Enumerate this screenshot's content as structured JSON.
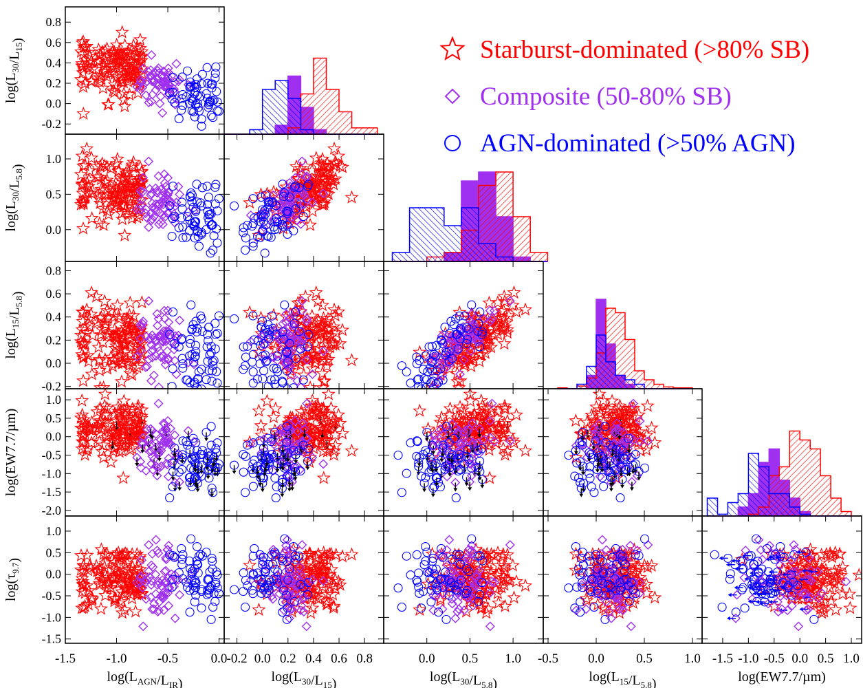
{
  "legend": {
    "starburst": {
      "label": "Starburst-dominated (>80% SB)",
      "color": "#ff0000",
      "icon": "star-icon"
    },
    "composite": {
      "label": "Composite (50-80% SB)",
      "color": "#a030ef",
      "icon": "diamond-icon"
    },
    "agn": {
      "label": "AGN-dominated (>50% AGN)",
      "color": "#0000ff",
      "icon": "circle-icon"
    }
  },
  "upper_limit_color": "#000000",
  "chart_data": {
    "type": "scatter",
    "layout": "corner-plot",
    "variables": [
      {
        "key": "agn",
        "label": "log(L_AGN/L_IR)",
        "range": [
          -1.5,
          0.05
        ],
        "ticks": [
          -1.5,
          -1.0,
          -0.5,
          0.0
        ],
        "ticklabels": [
          "-1.5",
          "-1.0",
          "-0.5",
          "0.0"
        ]
      },
      {
        "key": "l30_15",
        "label": "log(L_30/L_15)",
        "range": [
          -0.3,
          0.95
        ],
        "ticks": [
          -0.2,
          0.0,
          0.2,
          0.4,
          0.6,
          0.8
        ],
        "ticklabels": [
          "-0.2",
          "0.0",
          "0.2",
          "0.4",
          "0.6",
          "0.8"
        ]
      },
      {
        "key": "l30_58",
        "label": "log(L_30/L_5.8)",
        "range": [
          -0.45,
          1.35
        ],
        "ticks": [
          0.0,
          0.5,
          1.0
        ],
        "ticklabels": [
          "0.0",
          "0.5",
          "1.0"
        ]
      },
      {
        "key": "l15_58",
        "label": "log(L_15/L_5.8)",
        "range": [
          -0.22,
          0.88
        ],
        "ticks": [
          -0.2,
          0.0,
          0.2,
          0.4,
          0.6,
          0.8
        ],
        "ticklabels": [
          "-0.2",
          "0.0",
          "0.2",
          "0.4",
          "0.6",
          "0.8"
        ]
      },
      {
        "key": "ew",
        "label": "log(EW7.7/µm)",
        "range": [
          -2.15,
          1.3
        ],
        "ticks": [
          -2.0,
          -1.5,
          -1.0,
          -0.5,
          0.0,
          0.5,
          1.0
        ],
        "ticklabels": [
          "-2.0",
          "-1.5",
          "-1.0",
          "-0.5",
          "0.0",
          "0.5",
          "1.0"
        ]
      },
      {
        "key": "tau",
        "label": "log(τ_9.7)",
        "range": [
          -1.6,
          1.35
        ],
        "ticks": [
          -1.5,
          -1.0,
          -0.5,
          0.0,
          0.5,
          1.0
        ],
        "ticklabels": [
          "-1.5",
          "-1.0",
          "-0.5",
          "0.0",
          "0.5",
          "1.0"
        ]
      }
    ],
    "x_tick_labels": {
      "agn": [
        "-1.5",
        "-1.0",
        "-0.5",
        "0.0"
      ],
      "l30_15": [
        "-0.2",
        "0.0",
        "0.2",
        "0.4",
        "0.6",
        "0.8"
      ],
      "l30_58": [
        "0.0",
        "0.5",
        "1.0"
      ],
      "l15_58": [
        "-0.5",
        "0.0",
        "0.5",
        "1.0"
      ],
      "ew": [
        "-1.5",
        "-1.0",
        "-0.5",
        "0.0",
        "0.5",
        "1.0"
      ]
    },
    "x_tick_values": {
      "agn": [
        -1.5,
        -1.0,
        -0.5,
        0.0
      ],
      "l30_15": [
        -0.2,
        0.0,
        0.2,
        0.4,
        0.6,
        0.8
      ],
      "l30_58": [
        0.0,
        0.5,
        1.0
      ],
      "l15_58": [
        -0.5,
        0.0,
        0.5,
        1.0
      ],
      "ew": [
        -1.5,
        -1.0,
        -0.5,
        0.0,
        0.5,
        1.0
      ]
    },
    "x_ranges": {
      "agn": [
        -1.5,
        0.05
      ],
      "l30_15": [
        -0.3,
        0.95
      ],
      "l30_58": [
        -0.5,
        1.35
      ],
      "l15_58": [
        -0.55,
        1.1
      ],
      "ew": [
        -1.9,
        1.2
      ]
    },
    "histograms": {
      "l30_15": {
        "bins": [
          -0.3,
          -0.2,
          -0.1,
          0.0,
          0.1,
          0.2,
          0.3,
          0.4,
          0.5,
          0.6,
          0.7,
          0.8,
          0.9
        ],
        "starburst": [
          0,
          0,
          0,
          0,
          0,
          0.07,
          0.45,
          0.85,
          0.5,
          0.25,
          0.07,
          0.07
        ],
        "composite": [
          0,
          0,
          0,
          0,
          0.1,
          0.65,
          0.3,
          0.05,
          0,
          0,
          0,
          0
        ],
        "agn": [
          0,
          0,
          0.05,
          0.5,
          0.6,
          0.4,
          0.05,
          0,
          0,
          0,
          0,
          0
        ]
      },
      "l30_58": {
        "bins": [
          -0.4,
          -0.2,
          0.0,
          0.2,
          0.4,
          0.6,
          0.8,
          1.0,
          1.2,
          1.4
        ],
        "starburst": [
          0,
          0,
          0.05,
          0.1,
          0.35,
          0.85,
          1.0,
          0.5,
          0.1
        ],
        "composite": [
          0,
          0,
          0,
          0.1,
          0.9,
          1.0,
          0.5,
          0.05,
          0
        ],
        "agn": [
          0.1,
          0.6,
          0.6,
          0.4,
          0.6,
          0.2,
          0.05,
          0,
          0
        ]
      },
      "l15_58": {
        "bins": [
          -0.4,
          -0.3,
          -0.2,
          -0.1,
          0.0,
          0.1,
          0.2,
          0.3,
          0.4,
          0.5,
          0.6,
          0.7,
          0.8,
          1.0
        ],
        "starburst": [
          0.01,
          0,
          0.03,
          0.12,
          0.4,
          0.9,
          0.85,
          0.55,
          0.2,
          0.1,
          0.05,
          0.02,
          0.01
        ],
        "composite": [
          0,
          0,
          0,
          0.15,
          1.0,
          0.5,
          0.15,
          0.05,
          0,
          0,
          0,
          0,
          0
        ],
        "agn": [
          0,
          0,
          0.05,
          0.25,
          0.6,
          0.3,
          0.15,
          0.1,
          0.05,
          0,
          0,
          0,
          0
        ]
      },
      "ew": {
        "bins": [
          -1.8,
          -1.6,
          -1.4,
          -1.2,
          -1.0,
          -0.8,
          -0.6,
          -0.4,
          -0.2,
          0.0,
          0.2,
          0.4,
          0.6,
          0.8,
          1.0
        ],
        "starburst": [
          0,
          0,
          0,
          0,
          0.02,
          0.1,
          0.45,
          0.55,
          0.95,
          0.85,
          0.75,
          0.45,
          0.2,
          0.05
        ],
        "composite": [
          0,
          0,
          0,
          0.1,
          0.25,
          0.6,
          0.75,
          0.4,
          0.2,
          0.05,
          0,
          0,
          0,
          0
        ],
        "agn": [
          0.2,
          0.02,
          0.15,
          0.25,
          0.7,
          0.55,
          0.25,
          0.25,
          0.1,
          0.02,
          0,
          0,
          0,
          0
        ]
      }
    }
  }
}
